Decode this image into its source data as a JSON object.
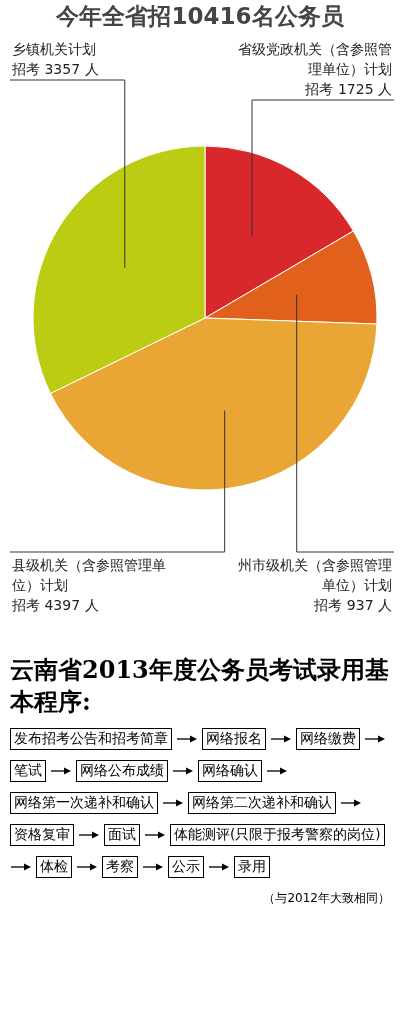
{
  "chart_data": [
    {
      "type": "pie",
      "title": "今年全省招10416名公务员",
      "categories": [
        "省级党政机关（含参照管理单位）计划",
        "州市级机关（含参照管理单位）计划",
        "县级机关（含参照管理单位）计划",
        "乡镇机关计划"
      ],
      "values": [
        1725,
        937,
        4397,
        3357
      ],
      "value_labels": [
        "招考 1725 人",
        "招考 937 人",
        "招考 4397 人",
        "招考 3357 人"
      ],
      "colors": [
        "#d8282c",
        "#e0601c",
        "#eaa634",
        "#bccc12"
      ]
    },
    {
      "type": "other",
      "title": "云南省2013年度公务员考试录用基本程序:",
      "annotations": [
        "发布招考公告和招考简章",
        "网络报名",
        "网络缴费",
        "笔试",
        "网络公布成绩",
        "网络确认",
        "网络第一次递补和确认",
        "网络第二次递补和确认",
        "资格复审",
        "面试",
        "体能测评(只限于报考警察的岗位)",
        "体检",
        "考察",
        "公示",
        "录用",
        "（与2012年大致相同）"
      ]
    }
  ]
}
